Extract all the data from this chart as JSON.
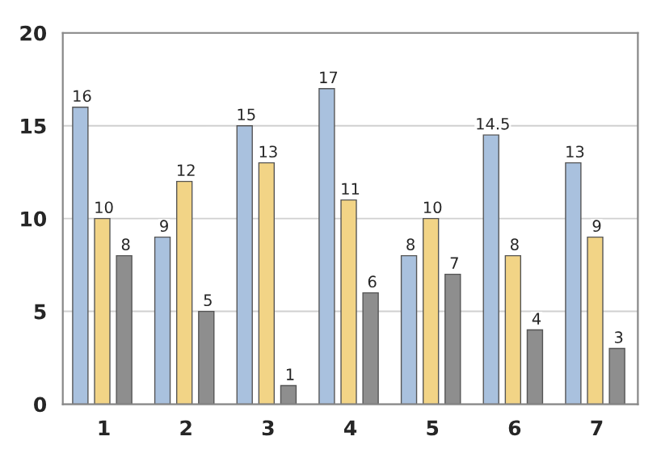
{
  "chart_data": {
    "type": "bar",
    "categories": [
      "1",
      "2",
      "3",
      "4",
      "5",
      "6",
      "7"
    ],
    "series": [
      {
        "color": "#a9c1de",
        "values": [
          16,
          9,
          15,
          17,
          8,
          14.5,
          13
        ]
      },
      {
        "color": "#f2d486",
        "values": [
          10,
          12,
          13,
          11,
          10,
          8,
          9
        ]
      },
      {
        "color": "#8e8e8e",
        "values": [
          8,
          5,
          1,
          6,
          7,
          4,
          3
        ]
      }
    ],
    "ylim": [
      0,
      20
    ],
    "yticks": [
      0,
      5,
      10,
      15,
      20
    ],
    "grid": "y",
    "data_labels": true
  }
}
